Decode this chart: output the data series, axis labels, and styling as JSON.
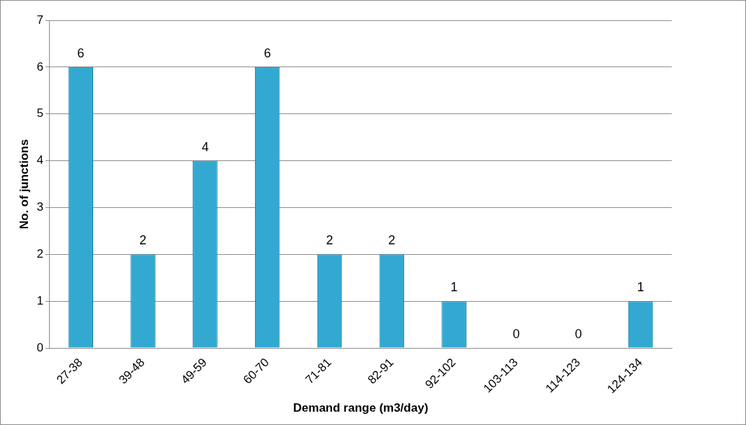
{
  "chart_data": {
    "type": "bar",
    "xlabel": "Demand range (m3/day)",
    "ylabel": "No. of junctions",
    "categories": [
      "27-38",
      "39-48",
      "49-59",
      "60-70",
      "71-81",
      "82-91",
      "92-102",
      "103-113",
      "114-123",
      "124-134"
    ],
    "values": [
      6,
      2,
      4,
      6,
      2,
      2,
      1,
      0,
      0,
      1
    ],
    "color": "#33a9d1",
    "ylim": [
      0,
      7
    ],
    "yticks": [
      0,
      1,
      2,
      3,
      4,
      5,
      6,
      7
    ],
    "grid": "y",
    "data_labels": true,
    "legend": false
  }
}
